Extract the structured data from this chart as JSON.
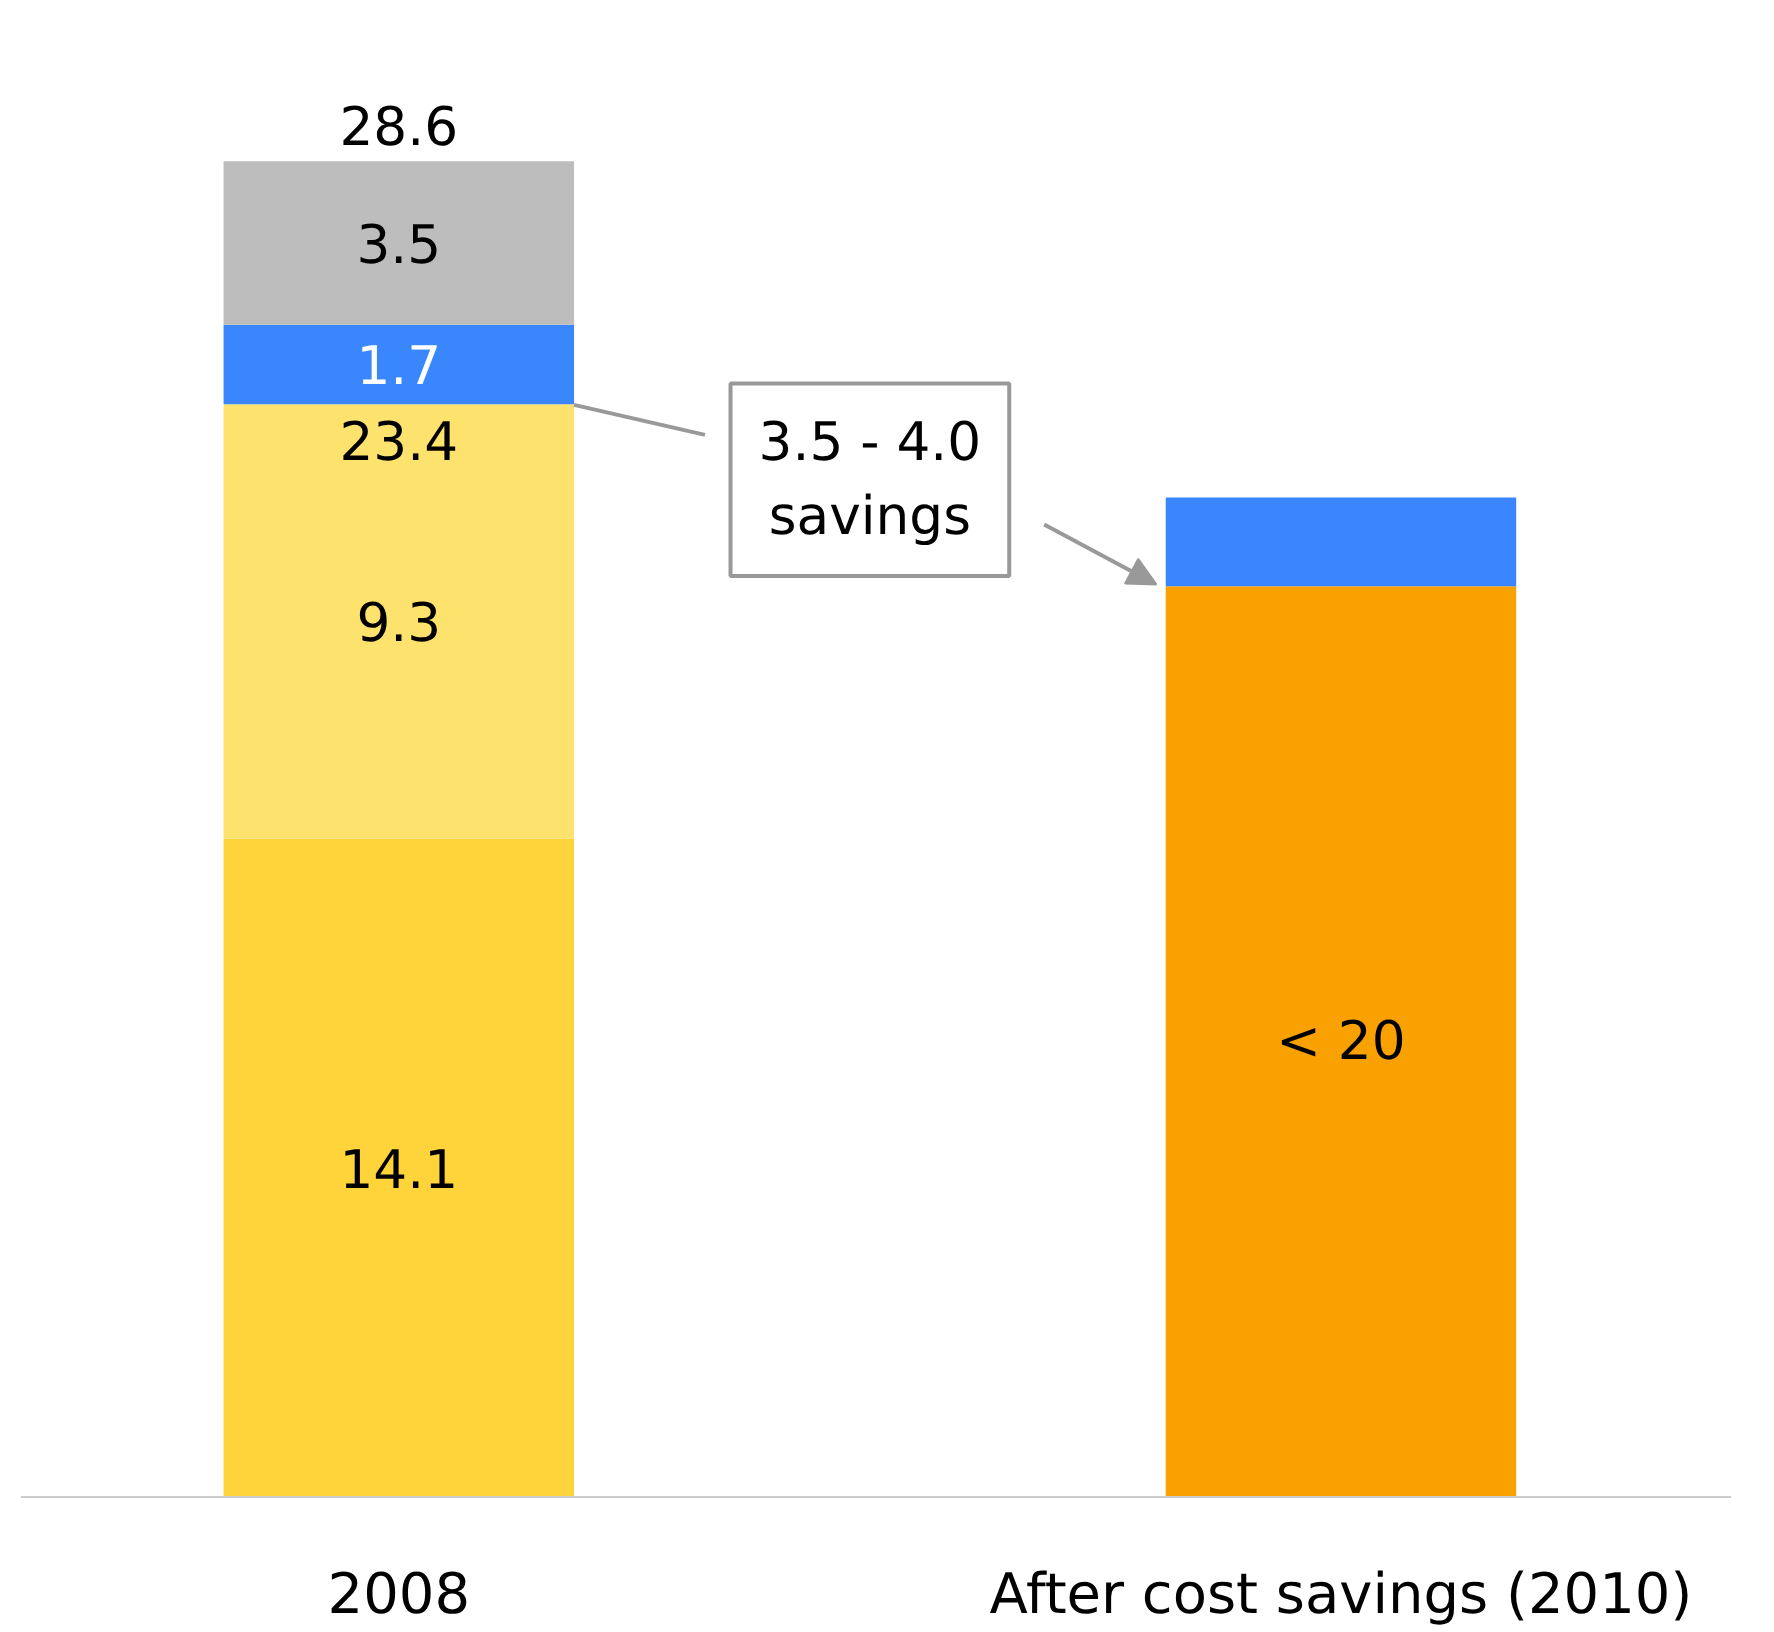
{
  "chart_data": {
    "type": "bar",
    "stacked": true,
    "categories": [
      "2008",
      "After cost savings (2010)"
    ],
    "series": [
      {
        "color": "#fed43a",
        "values": [
          14.1,
          null
        ],
        "value_labels": [
          "14.1",
          null
        ]
      },
      {
        "color": "#fee26e",
        "values": [
          9.3,
          null
        ],
        "value_labels": [
          "9.3",
          null
        ]
      },
      {
        "color": "#f9a100",
        "values": [
          null,
          19.5
        ],
        "value_labels": [
          null,
          "< 20"
        ]
      },
      {
        "color": "#3a87fd",
        "values": [
          1.7,
          1.9
        ],
        "value_labels": [
          "1.7",
          null
        ]
      },
      {
        "color": "#bdbdbd",
        "values": [
          3.5,
          null
        ],
        "value_labels": [
          "3.5",
          null
        ]
      }
    ],
    "totals": [
      "28.6",
      null
    ],
    "annotations": [
      {
        "text": "23.4",
        "x": "2008",
        "y": 23.4
      },
      "3.5 - 4.0\nsavings"
    ],
    "grid": false
  }
}
